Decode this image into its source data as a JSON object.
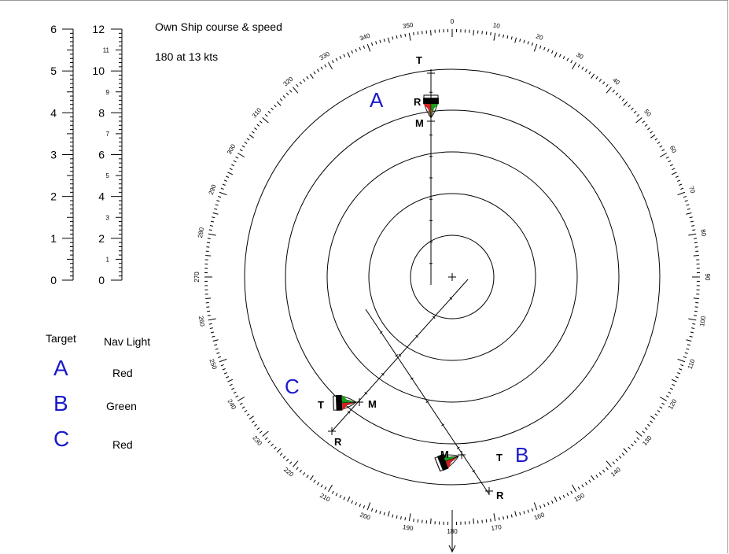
{
  "own_ship": {
    "title": "Own Ship course & speed",
    "value": "180  at 13 kts"
  },
  "scale_left": {
    "major_labels": [
      "0",
      "1",
      "2",
      "3",
      "4",
      "5",
      "6"
    ]
  },
  "scale_right": {
    "major_labels": [
      "0",
      "2",
      "4",
      "6",
      "8",
      "10",
      "12"
    ],
    "minor_labels": [
      "1",
      "3",
      "5",
      "7",
      "9",
      "11"
    ]
  },
  "table": {
    "col_target": "Target",
    "col_light": "Nav Light",
    "rows": [
      {
        "target": "A",
        "light": "Red"
      },
      {
        "target": "B",
        "light": "Green"
      },
      {
        "target": "C",
        "light": "Red"
      }
    ]
  },
  "plot": {
    "bearing_labels": [
      "0",
      "10",
      "20",
      "30",
      "40",
      "50",
      "60",
      "70",
      "80",
      "90",
      "100",
      "110",
      "120",
      "130",
      "140",
      "150",
      "160",
      "170",
      "180",
      "190",
      "200",
      "210",
      "220",
      "230",
      "240",
      "250",
      "260",
      "270",
      "280",
      "290",
      "300",
      "310",
      "320",
      "330",
      "340",
      "350"
    ],
    "targets": [
      {
        "name": "A",
        "labels": {
          "T": "T",
          "R": "R",
          "M": "M"
        }
      },
      {
        "name": "B",
        "labels": {
          "T": "T",
          "R": "R",
          "M": "M"
        }
      },
      {
        "name": "C",
        "labels": {
          "T": "T",
          "R": "R",
          "M": "M"
        }
      }
    ],
    "colors": {
      "port": "#d42020",
      "starboard": "#1aa01a",
      "hull": "#000000",
      "label_blue": "#1a1acc"
    }
  }
}
